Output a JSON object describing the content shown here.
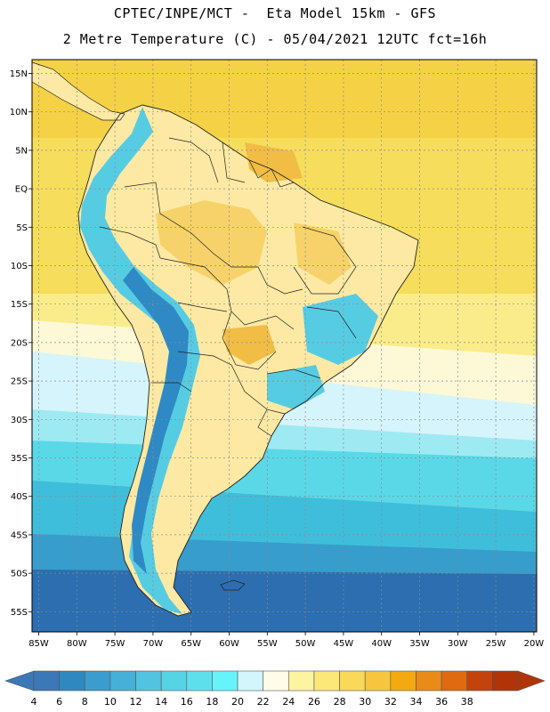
{
  "header": {
    "title_line1": "CPTEC/INPE/MCT -  Eta Model 15km - GFS",
    "title_line2": "2 Metre Temperature (C) - 05/04/2021 12UTC fct=16h"
  },
  "axes": {
    "lat_labels": [
      "15N",
      "10N",
      "5N",
      "EQ",
      "5S",
      "10S",
      "15S",
      "20S",
      "25S",
      "30S",
      "35S",
      "40S",
      "45S",
      "50S",
      "55S"
    ],
    "lon_labels": [
      "85W",
      "80W",
      "75W",
      "70W",
      "65W",
      "60W",
      "55W",
      "50W",
      "45W",
      "40W",
      "35W",
      "30W",
      "25W",
      "20W"
    ]
  },
  "colorbar": {
    "labels": [
      "4",
      "6",
      "8",
      "10",
      "12",
      "14",
      "16",
      "18",
      "20",
      "22",
      "24",
      "26",
      "28",
      "30",
      "32",
      "34",
      "36",
      "38"
    ],
    "colors": [
      "#3a78b8",
      "#2f88c0",
      "#3b9cce",
      "#46b0d8",
      "#50c4e0",
      "#56d4e6",
      "#5ee0ec",
      "#66f4fa",
      "#d2f6fc",
      "#fffce8",
      "#fcf4a0",
      "#fce878",
      "#fad85a",
      "#f8c63e",
      "#f2aa10",
      "#ea8a18",
      "#e06a10",
      "#c4420c",
      "#b03408"
    ]
  },
  "map": {
    "temperature_palette": {
      "ocean_north": "#f5d145",
      "ocean_warm": "#f7dd5c",
      "ocean_mid": "#faec8a",
      "ocean_light": "#fdf8d6",
      "ocean_pale": "#d6f4fb",
      "ocean_cyan": "#9deaf3",
      "ocean_c2": "#5ad8e8",
      "ocean_c3": "#3fbedb",
      "ocean_c4": "#369dcc",
      "ocean_deep": "#2c6eb0",
      "land_base": "#fde9a3",
      "land_warm": "#f7d26a",
      "land_hot": "#f1bd45",
      "andes_cold": "#56cce3",
      "andes_colder": "#2f89c4"
    }
  }
}
